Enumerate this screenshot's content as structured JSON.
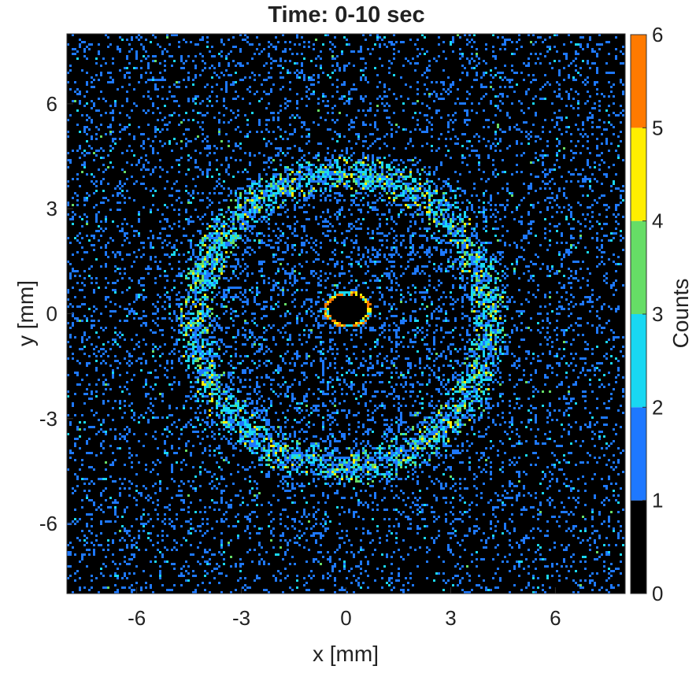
{
  "chart_data": {
    "type": "heatmap",
    "title": "Time: 0-10 sec",
    "xlabel": "x [mm]",
    "ylabel": "y [mm]",
    "xlim": [
      -8,
      8
    ],
    "ylim": [
      -8,
      8
    ],
    "x_ticks": [
      -6,
      -3,
      0,
      3,
      6
    ],
    "y_ticks": [
      6,
      3,
      0,
      -3,
      -6
    ],
    "x_tick_labels": [
      "-6",
      "-3",
      "0",
      "3",
      "6"
    ],
    "y_tick_labels": [
      "6",
      "3",
      "0",
      "-3",
      "-6"
    ],
    "grid": false,
    "colorbar": {
      "label": "Counts",
      "range": [
        0,
        6
      ],
      "ticks": [
        "0",
        "1",
        "2",
        "3",
        "4",
        "5",
        "6"
      ],
      "bins": [
        {
          "from": 0,
          "to": 1,
          "color": "#000000"
        },
        {
          "from": 1,
          "to": 2,
          "color": "#1e78ff"
        },
        {
          "from": 2,
          "to": 3,
          "color": "#19d8f2"
        },
        {
          "from": 3,
          "to": 4,
          "color": "#66dd66"
        },
        {
          "from": 4,
          "to": 5,
          "color": "#ffee00"
        },
        {
          "from": 5,
          "to": 6,
          "color": "#ff7a00"
        }
      ]
    },
    "features": {
      "ring": {
        "center_x": -0.1,
        "center_y": -0.2,
        "radius_mm": 4.2,
        "width_mm": 0.45
      },
      "center_hole": {
        "center_x": 0.05,
        "center_y": 0.1,
        "radius_x_mm": 0.55,
        "radius_y_mm": 0.42
      },
      "background_level": 1
    }
  }
}
